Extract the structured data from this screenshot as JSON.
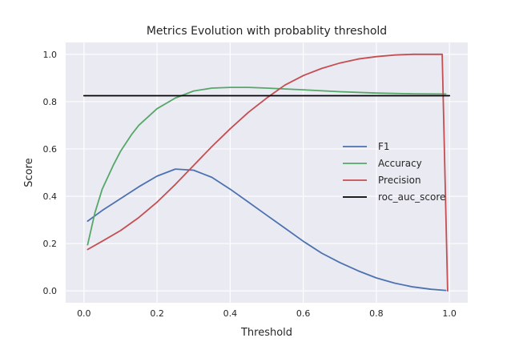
{
  "chart_data": {
    "type": "line",
    "title": "Metrics Evolution with probablity threshold",
    "xlabel": "Threshold",
    "ylabel": "Score",
    "xlim": [
      -0.05,
      1.05
    ],
    "ylim": [
      -0.05,
      1.05
    ],
    "xticks": [
      0.0,
      0.2,
      0.4,
      0.6,
      0.8,
      1.0
    ],
    "yticks": [
      0.0,
      0.2,
      0.4,
      0.6,
      0.8,
      1.0
    ],
    "xtick_labels": [
      "0.0",
      "0.2",
      "0.4",
      "0.6",
      "0.8",
      "1.0"
    ],
    "ytick_labels": [
      "0.0",
      "0.2",
      "0.4",
      "0.6",
      "0.8",
      "1.0"
    ],
    "grid": true,
    "style": "seaborn-darkgrid",
    "background_color": "#EAEAF2",
    "grid_color": "#ffffff",
    "text_color": "#262626",
    "legend_position": "center-right",
    "series": [
      {
        "name": "F1",
        "color": "#4C72B0",
        "x": [
          0.01,
          0.05,
          0.1,
          0.15,
          0.2,
          0.25,
          0.3,
          0.35,
          0.4,
          0.45,
          0.5,
          0.55,
          0.6,
          0.65,
          0.7,
          0.75,
          0.8,
          0.85,
          0.9,
          0.95,
          0.99
        ],
        "y": [
          0.295,
          0.34,
          0.39,
          0.44,
          0.485,
          0.515,
          0.51,
          0.48,
          0.43,
          0.375,
          0.32,
          0.265,
          0.21,
          0.16,
          0.12,
          0.085,
          0.055,
          0.033,
          0.017,
          0.007,
          0.002
        ]
      },
      {
        "name": "Accuracy",
        "color": "#55A868",
        "x": [
          0.01,
          0.03,
          0.05,
          0.08,
          0.1,
          0.13,
          0.15,
          0.2,
          0.25,
          0.3,
          0.35,
          0.4,
          0.45,
          0.5,
          0.6,
          0.7,
          0.8,
          0.9,
          0.99
        ],
        "y": [
          0.195,
          0.33,
          0.43,
          0.53,
          0.59,
          0.66,
          0.7,
          0.77,
          0.815,
          0.845,
          0.857,
          0.86,
          0.86,
          0.857,
          0.85,
          0.842,
          0.836,
          0.833,
          0.832
        ]
      },
      {
        "name": "Precision",
        "color": "#C44E52",
        "x": [
          0.01,
          0.05,
          0.1,
          0.15,
          0.2,
          0.25,
          0.3,
          0.35,
          0.4,
          0.45,
          0.5,
          0.55,
          0.6,
          0.65,
          0.7,
          0.75,
          0.8,
          0.85,
          0.9,
          0.95,
          0.98,
          0.995
        ],
        "y": [
          0.175,
          0.21,
          0.255,
          0.31,
          0.375,
          0.45,
          0.53,
          0.61,
          0.685,
          0.755,
          0.815,
          0.87,
          0.91,
          0.94,
          0.963,
          0.98,
          0.99,
          0.997,
          1.0,
          1.0,
          1.0,
          0.0
        ]
      },
      {
        "name": "roc_auc_score",
        "color": "#000000",
        "x": [
          0.0,
          1.0
        ],
        "y": [
          0.825,
          0.825
        ]
      }
    ]
  }
}
